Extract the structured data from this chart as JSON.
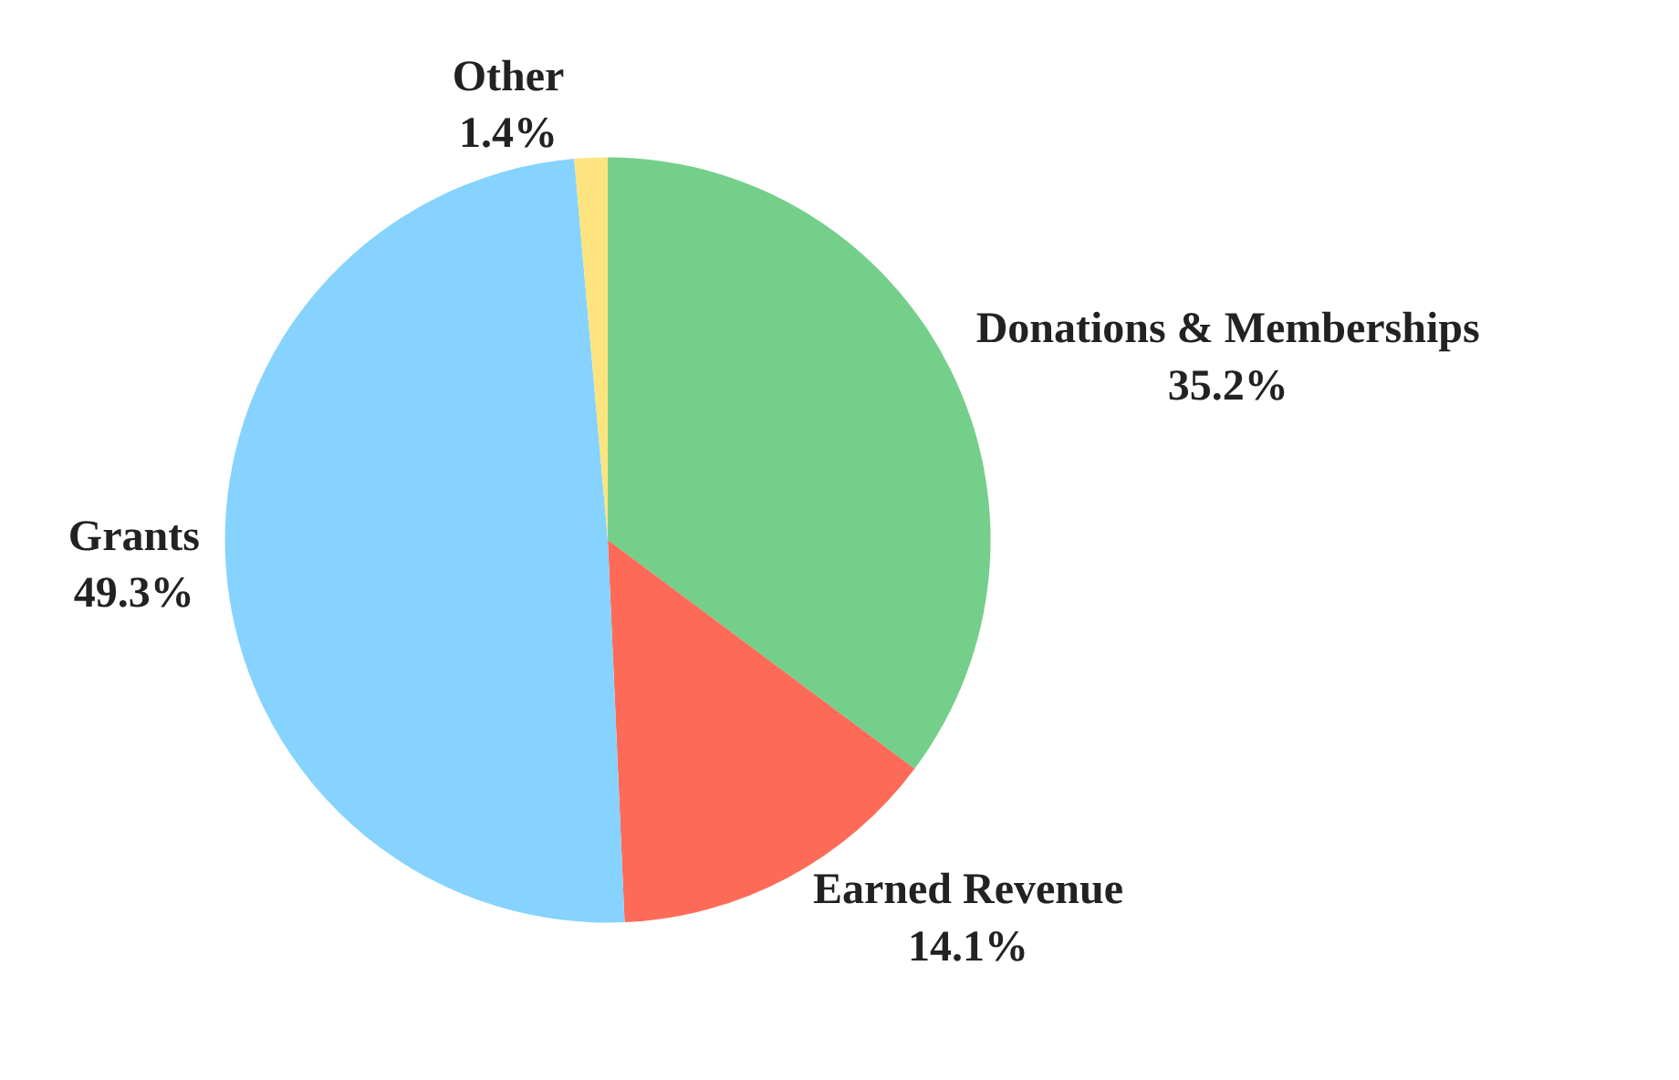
{
  "chart_data": {
    "type": "pie",
    "categories": [
      "Donations & Memberships",
      "Earned Revenue",
      "Grants",
      "Other"
    ],
    "values": [
      35.2,
      14.1,
      49.3,
      1.4
    ],
    "value_labels": [
      "35.2%",
      "14.1%",
      "49.3%",
      "1.4%"
    ],
    "colors": [
      "#74cf8a",
      "#fd6b58",
      "#85d3fe",
      "#fde47f"
    ],
    "legend": false
  }
}
